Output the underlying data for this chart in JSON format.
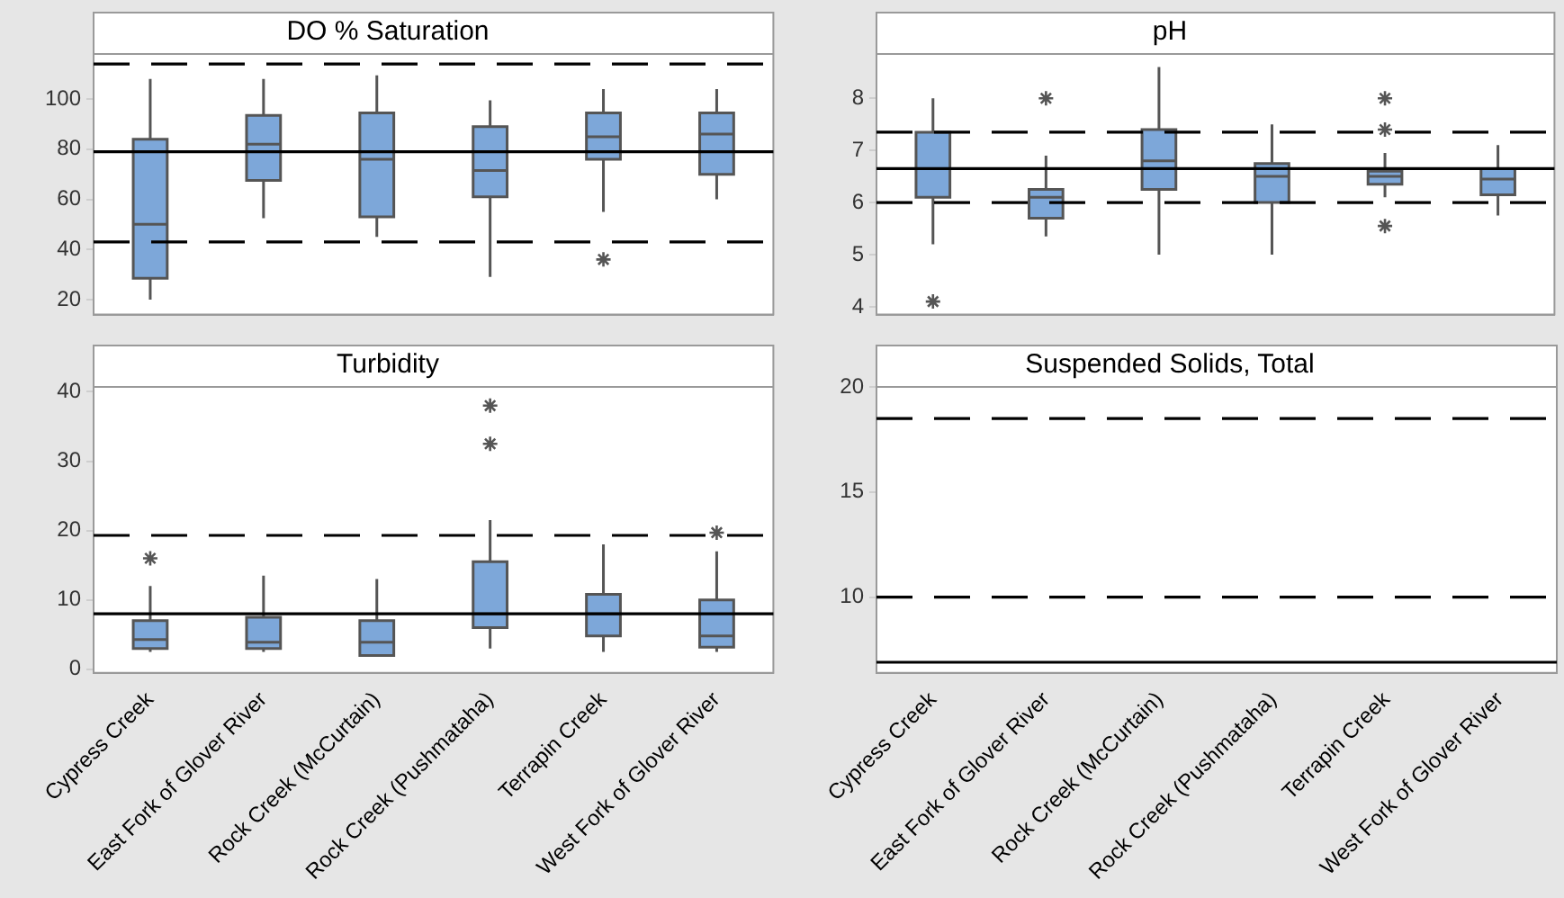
{
  "chart_data": [
    {
      "type": "box",
      "title": "DO % Saturation",
      "categories": [
        null,
        null,
        null,
        null,
        null,
        null
      ],
      "color": "#7da7d9",
      "boxes": [
        {
          "low": 20,
          "q1": 28.5,
          "median": 50,
          "q3": 84,
          "high": 108
        },
        {
          "low": 52.5,
          "q1": 67.5,
          "median": 82,
          "q3": 93.5,
          "high": 108
        },
        {
          "low": 45,
          "q1": 53,
          "median": 76,
          "q3": 94.5,
          "high": 109.5
        },
        {
          "low": 29,
          "q1": 61,
          "median": 71.5,
          "q3": 89,
          "high": 99.5
        },
        {
          "low": 55,
          "q1": 76,
          "median": 85,
          "q3": 94.5,
          "high": 104,
          "outliers": [
            36
          ]
        },
        {
          "low": 60,
          "q1": 70,
          "median": 86,
          "q3": 94.5,
          "high": 104
        }
      ],
      "ylim": [
        14,
        118
      ],
      "yticks": [
        20,
        40,
        60,
        80,
        100
      ],
      "tick_labels": "y",
      "grid": false,
      "ref_lines": [
        {
          "axis": "y",
          "value": 114,
          "line_style": "dashed"
        },
        {
          "axis": "y",
          "value": 79,
          "line_style": "solid"
        },
        {
          "axis": "y",
          "value": 43,
          "line_style": "dashed"
        }
      ]
    },
    {
      "type": "box",
      "title": "pH",
      "categories": [
        null,
        null,
        null,
        null,
        null,
        null
      ],
      "color": "#7da7d9",
      "boxes": [
        {
          "low": 5.2,
          "q1": 6.1,
          "median": 6.65,
          "q3": 7.35,
          "high": 8.0,
          "outliers": [
            4.1
          ]
        },
        {
          "low": 5.35,
          "q1": 5.7,
          "median": 6.1,
          "q3": 6.25,
          "high": 6.9,
          "outliers": [
            8.0
          ]
        },
        {
          "low": 5.0,
          "q1": 6.25,
          "median": 6.8,
          "q3": 7.4,
          "high": 8.6
        },
        {
          "low": 5.0,
          "q1": 6.0,
          "median": 6.5,
          "q3": 6.75,
          "high": 7.5
        },
        {
          "low": 6.1,
          "q1": 6.35,
          "median": 6.5,
          "q3": 6.6,
          "high": 6.95,
          "outliers": [
            8.0,
            7.4,
            5.55
          ]
        },
        {
          "low": 5.75,
          "q1": 6.15,
          "median": 6.45,
          "q3": 6.65,
          "high": 7.1
        }
      ],
      "ylim": [
        3.85,
        8.85
      ],
      "yticks": [
        4,
        5,
        6,
        7,
        8
      ],
      "tick_labels": "y",
      "grid": false,
      "ref_lines": [
        {
          "axis": "y",
          "value": 7.35,
          "line_style": "dashed"
        },
        {
          "axis": "y",
          "value": 6.65,
          "line_style": "solid"
        },
        {
          "axis": "y",
          "value": 6.0,
          "line_style": "dashed"
        }
      ]
    },
    {
      "type": "box",
      "title": "Turbidity",
      "categories": [
        "Cypress Creek",
        "East Fork of Glover River",
        "Rock Creek (McCurtain)",
        "Rock Creek (Pushmataha)",
        "Terrapin Creek",
        "West Fork of Glover River"
      ],
      "color": "#7da7d9",
      "boxes": [
        {
          "low": 2.5,
          "q1": 3,
          "median": 4.3,
          "q3": 7,
          "high": 12,
          "outliers": [
            16
          ]
        },
        {
          "low": 2.5,
          "q1": 3,
          "median": 3.9,
          "q3": 7.5,
          "high": 13.5
        },
        {
          "low": 2,
          "q1": 2,
          "median": 3.9,
          "q3": 7,
          "high": 13
        },
        {
          "low": 3,
          "q1": 6,
          "median": 8,
          "q3": 15.5,
          "high": 21.5,
          "outliers": [
            32.5,
            38
          ]
        },
        {
          "low": 2.5,
          "q1": 4.8,
          "median": 8,
          "q3": 10.8,
          "high": 18
        },
        {
          "low": 2.5,
          "q1": 3.2,
          "median": 4.8,
          "q3": 10,
          "high": 17,
          "outliers": [
            19.7
          ]
        }
      ],
      "ylim": [
        -0.5,
        40.7
      ],
      "yticks": [
        0,
        10,
        20,
        30,
        40
      ],
      "grid": false,
      "ref_lines": [
        {
          "axis": "y",
          "value": 19.3,
          "line_style": "dashed"
        },
        {
          "axis": "y",
          "value": 8,
          "line_style": "solid"
        }
      ]
    },
    {
      "type": "box",
      "title": "Suspended Solids, Total",
      "categories": [
        "Cypress Creek",
        "East Fork of Glover River",
        "Rock Creek (McCurtain)",
        "Rock Creek (Pushmataha)",
        "Terrapin Creek",
        "West Fork of Glover River"
      ],
      "color": "#7da7d9",
      "ylim": [
        6.4,
        20
      ],
      "yticks": [
        10,
        15,
        20
      ],
      "grid": false,
      "ref_lines": [
        {
          "axis": "y",
          "value": 18.5,
          "line_style": "dashed"
        },
        {
          "axis": "y",
          "value": 10,
          "line_style": "dashed"
        },
        {
          "axis": "y",
          "value": 6.9,
          "line_style": "solid"
        }
      ]
    }
  ]
}
